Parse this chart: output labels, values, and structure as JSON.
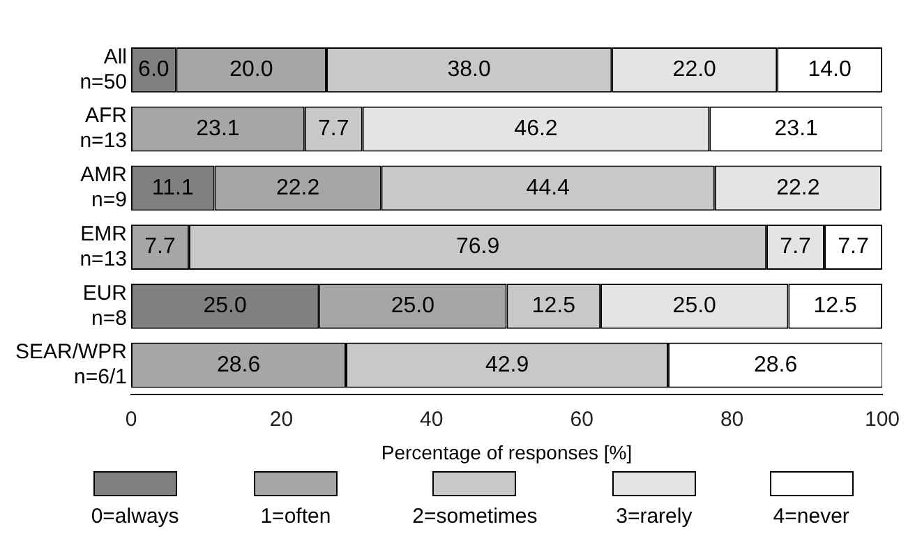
{
  "chart_data": {
    "type": "bar",
    "orientation": "horizontal",
    "stacked": true,
    "xlabel": "Percentage of responses [%]",
    "categories": [
      "All\nn=50",
      "AFR\nn=13",
      "AMR\nn=9",
      "EMR\nn=13",
      "EUR\nn=8",
      "SEAR/WPR\nn=6/1"
    ],
    "series": [
      {
        "name": "0=always",
        "color": "#808080",
        "values": [
          6.0,
          null,
          11.1,
          null,
          25.0,
          null
        ],
        "value_labels": [
          "6.0",
          null,
          "11.1",
          null,
          "25.0",
          null
        ]
      },
      {
        "name": "1=often",
        "color": "#a6a6a6",
        "values": [
          20.0,
          23.1,
          22.2,
          7.7,
          25.0,
          28.6
        ],
        "value_labels": [
          "20.0",
          "23.1",
          "22.2",
          "7.7",
          "25.0",
          "28.6"
        ]
      },
      {
        "name": "2=sometimes",
        "color": "#c8c8c8",
        "values": [
          38.0,
          7.7,
          44.4,
          76.9,
          12.5,
          42.9
        ],
        "value_labels": [
          "38.0",
          "7.7",
          "44.4",
          "76.9",
          "12.5",
          "42.9"
        ]
      },
      {
        "name": "3=rarely",
        "color": "#e4e4e4",
        "values": [
          22.0,
          46.2,
          22.2,
          7.7,
          25.0,
          null
        ],
        "value_labels": [
          "22.0",
          "46.2",
          "22.2",
          "7.7",
          "25.0",
          null
        ]
      },
      {
        "name": "4=never",
        "color": "#ffffff",
        "values": [
          14.0,
          23.1,
          null,
          7.7,
          12.5,
          28.6
        ],
        "value_labels": [
          "14.0",
          "23.1",
          null,
          "7.7",
          "12.5",
          "28.6"
        ]
      }
    ],
    "xlim": [
      0,
      100
    ],
    "xticks": [
      0,
      20,
      40,
      60,
      80,
      100
    ],
    "grid": false,
    "legend": "bottom"
  }
}
